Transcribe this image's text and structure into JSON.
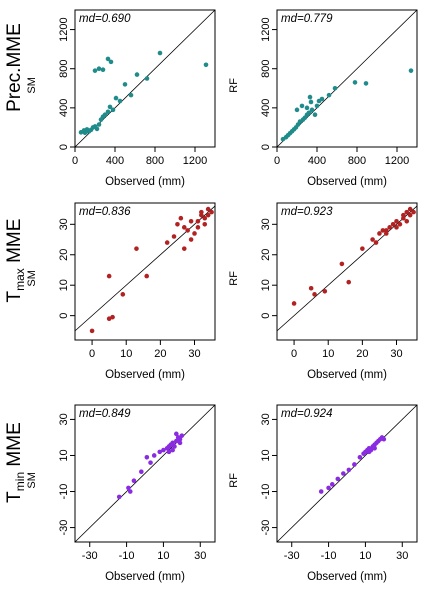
{
  "chart_data": [
    {
      "type": "scatter",
      "row": 0,
      "col": 0,
      "annotation": "md=0.690",
      "ylabel": "SM",
      "xlabel": "Observed (mm)",
      "xlim": [
        0,
        1400
      ],
      "ylim": [
        0,
        1400
      ],
      "xticks": [
        "0",
        "400",
        "800",
        "1200"
      ],
      "xtick_values": [
        0,
        400,
        800,
        1200
      ],
      "yticks": [
        "0",
        "400",
        "800",
        "1200"
      ],
      "ytick_values": [
        0,
        400,
        800,
        1200
      ],
      "color": "#1f8b8b",
      "show_xlabel": true,
      "points": [
        [
          60,
          150
        ],
        [
          90,
          170
        ],
        [
          100,
          145
        ],
        [
          120,
          180
        ],
        [
          140,
          160
        ],
        [
          160,
          175
        ],
        [
          180,
          200
        ],
        [
          200,
          210
        ],
        [
          220,
          185
        ],
        [
          240,
          230
        ],
        [
          260,
          280
        ],
        [
          280,
          310
        ],
        [
          300,
          330
        ],
        [
          330,
          360
        ],
        [
          350,
          410
        ],
        [
          380,
          380
        ],
        [
          410,
          500
        ],
        [
          450,
          470
        ],
        [
          500,
          640
        ],
        [
          560,
          530
        ],
        [
          620,
          740
        ],
        [
          720,
          700
        ],
        [
          850,
          960
        ],
        [
          1310,
          840
        ],
        [
          200,
          780
        ],
        [
          240,
          800
        ],
        [
          280,
          790
        ],
        [
          330,
          900
        ],
        [
          360,
          870
        ],
        [
          120,
          160
        ]
      ]
    },
    {
      "type": "scatter",
      "row": 0,
      "col": 1,
      "annotation": "md=0.779",
      "ylabel": "RF",
      "xlabel": "Observed (mm)",
      "xlim": [
        0,
        1400
      ],
      "ylim": [
        0,
        1400
      ],
      "xticks": [
        "0",
        "400",
        "800",
        "1200"
      ],
      "xtick_values": [
        0,
        400,
        800,
        1200
      ],
      "yticks": [
        "0",
        "400",
        "800",
        "1200"
      ],
      "ytick_values": [
        0,
        400,
        800,
        1200
      ],
      "color": "#1f8b8b",
      "show_xlabel": true,
      "points": [
        [
          60,
          80
        ],
        [
          90,
          100
        ],
        [
          110,
          120
        ],
        [
          130,
          140
        ],
        [
          150,
          160
        ],
        [
          170,
          180
        ],
        [
          190,
          200
        ],
        [
          210,
          230
        ],
        [
          230,
          260
        ],
        [
          260,
          280
        ],
        [
          280,
          300
        ],
        [
          300,
          330
        ],
        [
          320,
          350
        ],
        [
          350,
          380
        ],
        [
          380,
          330
        ],
        [
          400,
          420
        ],
        [
          420,
          470
        ],
        [
          450,
          490
        ],
        [
          520,
          530
        ],
        [
          580,
          600
        ],
        [
          200,
          380
        ],
        [
          250,
          420
        ],
        [
          300,
          400
        ],
        [
          330,
          510
        ],
        [
          340,
          460
        ],
        [
          780,
          660
        ],
        [
          890,
          650
        ],
        [
          1340,
          780
        ]
      ]
    },
    {
      "type": "scatter",
      "row": 1,
      "col": 0,
      "annotation": "md=0.836",
      "ylabel": "SM",
      "xlabel": "Observed (mm)",
      "xlim": [
        -5,
        36
      ],
      "ylim": [
        -8,
        37
      ],
      "xticks": [
        "0",
        "10",
        "20",
        "30"
      ],
      "xtick_values": [
        0,
        10,
        20,
        30
      ],
      "yticks": [
        "0",
        "10",
        "20",
        "30"
      ],
      "ytick_values": [
        0,
        10,
        20,
        30
      ],
      "color": "#b22222",
      "show_xlabel": true,
      "points": [
        [
          0,
          -5
        ],
        [
          5,
          -1
        ],
        [
          6,
          -0.5
        ],
        [
          5,
          13
        ],
        [
          9,
          7
        ],
        [
          13,
          22
        ],
        [
          16,
          13
        ],
        [
          22,
          24
        ],
        [
          24,
          26
        ],
        [
          25,
          30
        ],
        [
          26,
          32
        ],
        [
          27,
          29
        ],
        [
          28,
          28
        ],
        [
          29,
          31
        ],
        [
          30,
          27
        ],
        [
          31,
          29
        ],
        [
          31,
          31
        ],
        [
          32,
          33
        ],
        [
          32,
          34
        ],
        [
          33,
          32
        ],
        [
          34,
          35
        ],
        [
          34,
          33
        ],
        [
          35,
          34
        ],
        [
          29,
          25
        ],
        [
          27,
          22
        ],
        [
          33,
          30
        ]
      ]
    },
    {
      "type": "scatter",
      "row": 1,
      "col": 1,
      "annotation": "md=0.923",
      "ylabel": "RF",
      "xlabel": "Observed (mm)",
      "xlim": [
        -5,
        36
      ],
      "ylim": [
        -8,
        37
      ],
      "xticks": [
        "0",
        "10",
        "20",
        "30"
      ],
      "xtick_values": [
        0,
        10,
        20,
        30
      ],
      "yticks": [
        "0",
        "10",
        "20",
        "30"
      ],
      "ytick_values": [
        0,
        10,
        20,
        30
      ],
      "color": "#b22222",
      "show_xlabel": true,
      "points": [
        [
          0,
          4
        ],
        [
          5,
          9
        ],
        [
          6,
          7
        ],
        [
          9,
          8
        ],
        [
          14,
          17
        ],
        [
          16,
          11
        ],
        [
          20,
          22
        ],
        [
          23,
          25
        ],
        [
          25,
          27
        ],
        [
          26,
          28
        ],
        [
          27,
          28
        ],
        [
          28,
          29
        ],
        [
          29,
          30
        ],
        [
          30,
          31
        ],
        [
          31,
          30
        ],
        [
          32,
          32
        ],
        [
          32,
          33
        ],
        [
          33,
          31
        ],
        [
          33,
          34
        ],
        [
          34,
          33
        ],
        [
          34,
          35
        ],
        [
          35,
          34
        ],
        [
          24,
          24
        ],
        [
          27,
          27
        ],
        [
          30,
          29
        ]
      ]
    },
    {
      "type": "scatter",
      "row": 2,
      "col": 0,
      "annotation": "md=0.849",
      "ylabel": "SM",
      "xlabel": "Observed (mm)",
      "xlim": [
        -38,
        38
      ],
      "ylim": [
        -38,
        38
      ],
      "xticks": [
        "-30",
        "-10",
        "10",
        "30"
      ],
      "xtick_values": [
        -30,
        -10,
        10,
        30
      ],
      "yticks": [
        "-30",
        "-10",
        "10",
        "30"
      ],
      "ytick_values": [
        -30,
        -10,
        10,
        30
      ],
      "color": "#8a2be2",
      "show_xlabel": true,
      "points": [
        [
          -14,
          -13
        ],
        [
          -9,
          -8
        ],
        [
          -8,
          -10
        ],
        [
          -6,
          -4
        ],
        [
          -2,
          1
        ],
        [
          1,
          9
        ],
        [
          3,
          6
        ],
        [
          5,
          10
        ],
        [
          8,
          12
        ],
        [
          10,
          13
        ],
        [
          12,
          14
        ],
        [
          13,
          12
        ],
        [
          14,
          16
        ],
        [
          15,
          17
        ],
        [
          16,
          15
        ],
        [
          17,
          18
        ],
        [
          18,
          20
        ],
        [
          19,
          19
        ],
        [
          20,
          21
        ],
        [
          17,
          22
        ],
        [
          19,
          17
        ],
        [
          15,
          13
        ],
        [
          13,
          15
        ]
      ]
    },
    {
      "type": "scatter",
      "row": 2,
      "col": 1,
      "annotation": "md=0.924",
      "ylabel": "RF",
      "xlabel": "Observed (mm)",
      "xlim": [
        -38,
        38
      ],
      "ylim": [
        -38,
        38
      ],
      "xticks": [
        "-30",
        "-10",
        "10",
        "30"
      ],
      "xtick_values": [
        -30,
        -10,
        10,
        30
      ],
      "yticks": [
        "-30",
        "-10",
        "10",
        "30"
      ],
      "ytick_values": [
        -30,
        -10,
        10,
        30
      ],
      "color": "#8a2be2",
      "show_xlabel": true,
      "points": [
        [
          -14,
          -10
        ],
        [
          -10,
          -8
        ],
        [
          -8,
          -6
        ],
        [
          -5,
          -3
        ],
        [
          -2,
          0
        ],
        [
          1,
          2
        ],
        [
          4,
          5
        ],
        [
          7,
          9
        ],
        [
          9,
          11
        ],
        [
          10,
          12
        ],
        [
          11,
          13
        ],
        [
          12,
          14
        ],
        [
          13,
          13
        ],
        [
          14,
          15
        ],
        [
          15,
          16
        ],
        [
          16,
          17
        ],
        [
          17,
          18
        ],
        [
          18,
          19
        ],
        [
          19,
          20
        ],
        [
          20,
          19
        ],
        [
          15,
          14
        ],
        [
          12,
          12
        ]
      ]
    }
  ],
  "row_labels": [
    {
      "main": "Prec.MME",
      "sub": ""
    },
    {
      "main_prefix": "T",
      "subscript": "max",
      "main_suffix": " MME"
    },
    {
      "main_prefix": "T",
      "subscript": "min",
      "main_suffix": " MME"
    }
  ]
}
